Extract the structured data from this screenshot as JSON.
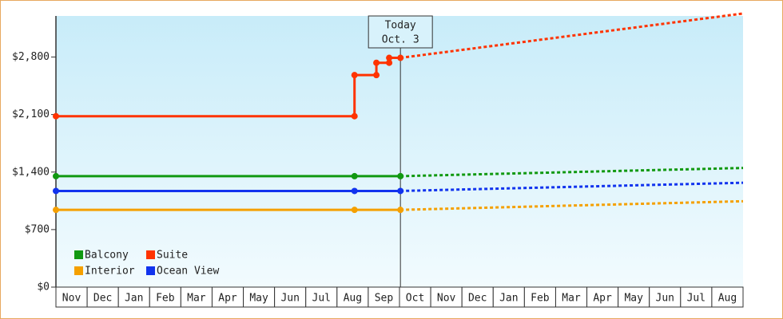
{
  "chart_data": {
    "type": "line",
    "annotation": {
      "x": 11.03,
      "lines": [
        "Today",
        "Oct. 3"
      ]
    },
    "xlim": [
      0,
      22
    ],
    "xticks": [
      {
        "value": 0.5,
        "label": "Nov"
      },
      {
        "value": 1.5,
        "label": "Dec"
      },
      {
        "value": 2.5,
        "label": "Jan"
      },
      {
        "value": 3.5,
        "label": "Feb"
      },
      {
        "value": 4.5,
        "label": "Mar"
      },
      {
        "value": 5.5,
        "label": "Apr"
      },
      {
        "value": 6.5,
        "label": "May"
      },
      {
        "value": 7.5,
        "label": "Jun"
      },
      {
        "value": 8.5,
        "label": "Jul"
      },
      {
        "value": 9.5,
        "label": "Aug"
      },
      {
        "value": 10.5,
        "label": "Sep"
      },
      {
        "value": 11.5,
        "label": "Oct"
      },
      {
        "value": 12.5,
        "label": "Nov"
      },
      {
        "value": 13.5,
        "label": "Dec"
      },
      {
        "value": 14.5,
        "label": "Jan"
      },
      {
        "value": 15.5,
        "label": "Feb"
      },
      {
        "value": 16.5,
        "label": "Mar"
      },
      {
        "value": 17.5,
        "label": "Apr"
      },
      {
        "value": 18.5,
        "label": "May"
      },
      {
        "value": 19.5,
        "label": "Jun"
      },
      {
        "value": 20.5,
        "label": "Jul"
      },
      {
        "value": 21.5,
        "label": "Aug"
      }
    ],
    "ylim": [
      0,
      3300
    ],
    "yticks": [
      {
        "value": 0,
        "label": "$0"
      },
      {
        "value": 700,
        "label": "$700"
      },
      {
        "value": 1400,
        "label": "$1,400"
      },
      {
        "value": 2100,
        "label": "$2,100"
      },
      {
        "value": 2800,
        "label": "$2,800"
      }
    ],
    "legend": "lower left",
    "series": [
      {
        "name": "Balcony",
        "color": "#119911",
        "x": [
          0,
          9.56,
          11.03
        ],
        "values": [
          1350,
          1350,
          1350
        ],
        "projection_x": [
          11.03,
          22
        ],
        "projection_values": [
          1350,
          1450
        ]
      },
      {
        "name": "Suite",
        "color": "#ff3300",
        "x": [
          0,
          9.56,
          9.56,
          10.26,
          10.26,
          10.67,
          10.67,
          11.03
        ],
        "values": [
          2080,
          2080,
          2580,
          2580,
          2730,
          2730,
          2790,
          2790
        ],
        "projection_x": [
          11.03,
          22
        ],
        "projection_values": [
          2790,
          3330
        ]
      },
      {
        "name": "Interior",
        "color": "#f5a000",
        "x": [
          0,
          9.56,
          11.03
        ],
        "values": [
          940,
          940,
          940
        ],
        "projection_x": [
          11.03,
          22
        ],
        "projection_values": [
          940,
          1045
        ]
      },
      {
        "name": "Ocean View",
        "color": "#1133ee",
        "x": [
          0,
          9.56,
          11.03
        ],
        "values": [
          1170,
          1170,
          1170
        ],
        "projection_x": [
          11.03,
          22
        ],
        "projection_values": [
          1170,
          1270
        ]
      }
    ]
  }
}
